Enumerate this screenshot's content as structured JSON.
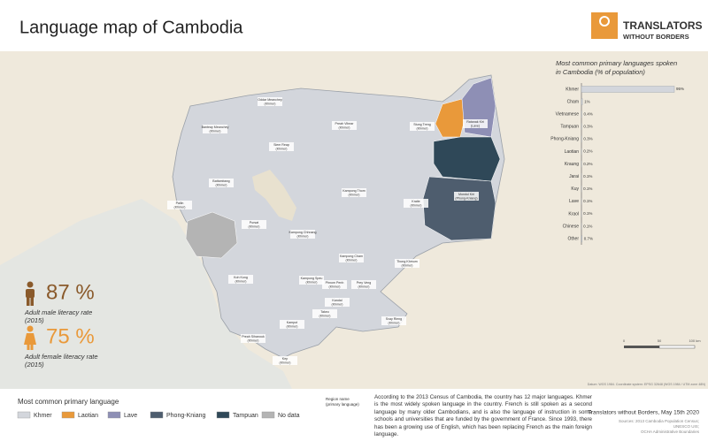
{
  "header": {
    "title": "Language map of Cambodia",
    "logo_line1": "TRANSLATORS",
    "logo_line2": "WITHOUT BORDERS"
  },
  "chart_data": {
    "type": "bar",
    "title_lines": [
      "Most common primary languages spoken",
      "in Cambodia (% of population)"
    ],
    "categories": [
      "Khmer",
      "Cham",
      "Vietnamese",
      "Tampuan",
      "Phong-Kniang",
      "Laotian",
      "Kraung",
      "Jarai",
      "Kuy",
      "Lave",
      "Kraol",
      "Chinese",
      "Other"
    ],
    "values": [
      95,
      1,
      0.4,
      0.3,
      0.3,
      0.2,
      0.2,
      0.1,
      0.1,
      0.1,
      0.1,
      0.1,
      0.7
    ],
    "value_labels": [
      "95%",
      "1%",
      "0.4%",
      "0.3%",
      "0.3%",
      "0.2%",
      "0.2%",
      "0.1%",
      "0.1%",
      "0.1%",
      "0.1%",
      "0.1%",
      "0.7%"
    ],
    "color": "#d3d6dc"
  },
  "literacy": {
    "male_value": "87 %",
    "male_label": [
      "Adult male literacy rate",
      "(2015)"
    ],
    "female_value": "75 %",
    "female_label": [
      "Adult female literacy rate",
      "(2015)"
    ]
  },
  "legend": {
    "title": "Most common primary language",
    "items": [
      {
        "name": "Khmer",
        "color": "#d3d6dc"
      },
      {
        "name": "Laotian",
        "color": "#e9993a"
      },
      {
        "name": "Lave",
        "color": "#8e8fb5"
      },
      {
        "name": "Phong-Kniang",
        "color": "#4e5d6e"
      },
      {
        "name": "Tampuan",
        "color": "#2f4858"
      },
      {
        "name": "No data",
        "color": "#b4b4b4"
      }
    ],
    "region_key": [
      "Region name",
      "(primary language)"
    ]
  },
  "regions": [
    {
      "name": "Oddar Meanchey",
      "language": "(Khmer)"
    },
    {
      "name": "Banteay Meanchey",
      "language": "(Khmer)"
    },
    {
      "name": "Siem Reap",
      "language": "(Khmer)"
    },
    {
      "name": "Preah Vihear",
      "language": "(Khmer)"
    },
    {
      "name": "Stung Treng",
      "language": "(Khmer)"
    },
    {
      "name": "Ratanak Kiri",
      "language": "(Lave)"
    },
    {
      "name": "Battambang",
      "language": "(Khmer)"
    },
    {
      "name": "Pailin",
      "language": "(Khmer)"
    },
    {
      "name": "Pursat",
      "language": "(Khmer)"
    },
    {
      "name": "Kampong Thom",
      "language": "(Khmer)"
    },
    {
      "name": "Kratie",
      "language": "(Khmer)"
    },
    {
      "name": "Mondul Kiri",
      "language": "(Phong-Kniang)"
    },
    {
      "name": "Kampong Chhnang",
      "language": "(Khmer)"
    },
    {
      "name": "Kampong Cham",
      "language": "(Khmer)"
    },
    {
      "name": "Tbong Khmum",
      "language": "(Khmer)"
    },
    {
      "name": "Koh Kong",
      "language": "(Khmer)"
    },
    {
      "name": "Kampong Speu",
      "language": "(Khmer)"
    },
    {
      "name": "Phnom Penh",
      "language": "(Khmer)"
    },
    {
      "name": "Prey Veng",
      "language": "(Khmer)"
    },
    {
      "name": "Kandal",
      "language": "(Khmer)"
    },
    {
      "name": "Svay Rieng",
      "language": "(Khmer)"
    },
    {
      "name": "Takeo",
      "language": "(Khmer)"
    },
    {
      "name": "Kampot",
      "language": "(Khmer)"
    },
    {
      "name": "Preah Sihanouk",
      "language": "(Khmer)"
    },
    {
      "name": "Kep",
      "language": "(Khmer)"
    }
  ],
  "scale": {
    "labels": [
      "0",
      "50",
      "100 km"
    ]
  },
  "map_note": "Datum: WGS 1984. Coordinate system: EPSG 32648 (WGS 1984 / UTM zone 48N)",
  "paragraph": "According to the 2013 Census of Cambodia, the country has 12 major languages. Khmer is the most widely spoken language in the country. French is still spoken as a second language by many older Cambodians, and is also the language of instruction in some schools and universities that are funded by the government of France. Since 1993, there has been a growing use of English, which has been replacing French as the main foreign language.",
  "footer": {
    "credit": "Translators without Borders, May 15th 2020",
    "sources": [
      "Sources: 2013 Cambodia Population Census;",
      "UNESCO UIS;",
      "OCHA Administrative Boundaries"
    ]
  }
}
